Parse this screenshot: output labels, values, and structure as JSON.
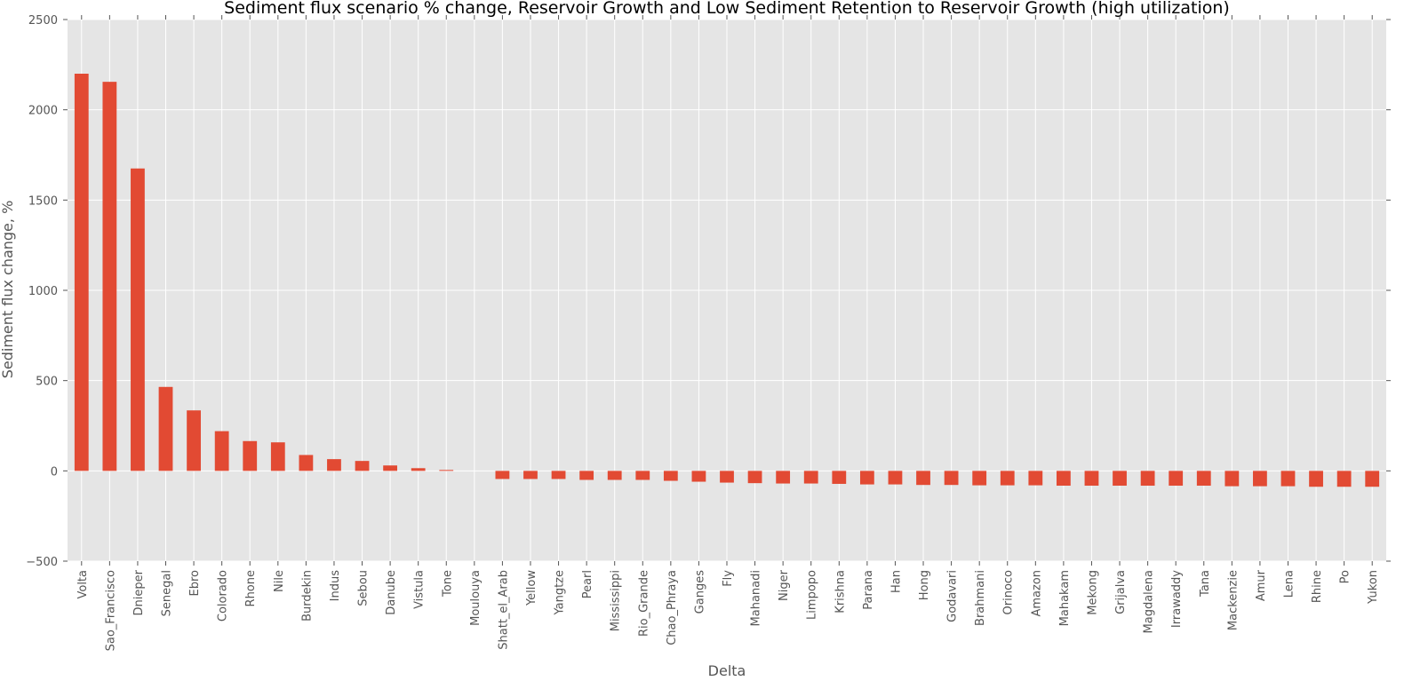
{
  "chart_data": {
    "type": "bar",
    "title": "Sediment flux scenario % change, Reservoir Growth and Low Sediment Retention to Reservoir Growth (high utilization)",
    "xlabel": "Delta",
    "ylabel": "Sediment flux change, %",
    "ylim": [
      -500,
      2500
    ],
    "yticks": [
      -500,
      0,
      500,
      1000,
      1500,
      2000,
      2500
    ],
    "grid": true,
    "legend": "none",
    "colors": {
      "bar": "#e24a33",
      "plot_background": "#e5e5e5",
      "grid": "#ffffff",
      "text": "#555555"
    },
    "categories": [
      "Volta",
      "Sao_Francisco",
      "Dnieper",
      "Senegal",
      "Ebro",
      "Colorado",
      "Rhone",
      "Nile",
      "Burdekin",
      "Indus",
      "Sebou",
      "Danube",
      "Vistula",
      "Tone",
      "Moulouya",
      "Shatt_el_Arab",
      "Yellow",
      "Yangtze",
      "Pearl",
      "Mississippi",
      "Rio_Grande",
      "Chao_Phraya",
      "Ganges",
      "Fly",
      "Mahanadi",
      "Niger",
      "Limpopo",
      "Krishna",
      "Parana",
      "Han",
      "Hong",
      "Godavari",
      "Brahmani",
      "Orinoco",
      "Amazon",
      "Mahakam",
      "Mekong",
      "Grijalva",
      "Magdalena",
      "Irrawaddy",
      "Tana",
      "Mackenzie",
      "Amur",
      "Lena",
      "Rhine",
      "Po",
      "Yukon"
    ],
    "values": [
      2200,
      2155,
      1675,
      465,
      335,
      220,
      165,
      158,
      88,
      65,
      55,
      30,
      15,
      5,
      0,
      -45,
      -45,
      -45,
      -50,
      -50,
      -50,
      -55,
      -60,
      -65,
      -68,
      -70,
      -70,
      -72,
      -75,
      -75,
      -78,
      -78,
      -80,
      -80,
      -80,
      -82,
      -82,
      -82,
      -82,
      -82,
      -82,
      -85,
      -85,
      -85,
      -88,
      -88,
      -88
    ]
  }
}
